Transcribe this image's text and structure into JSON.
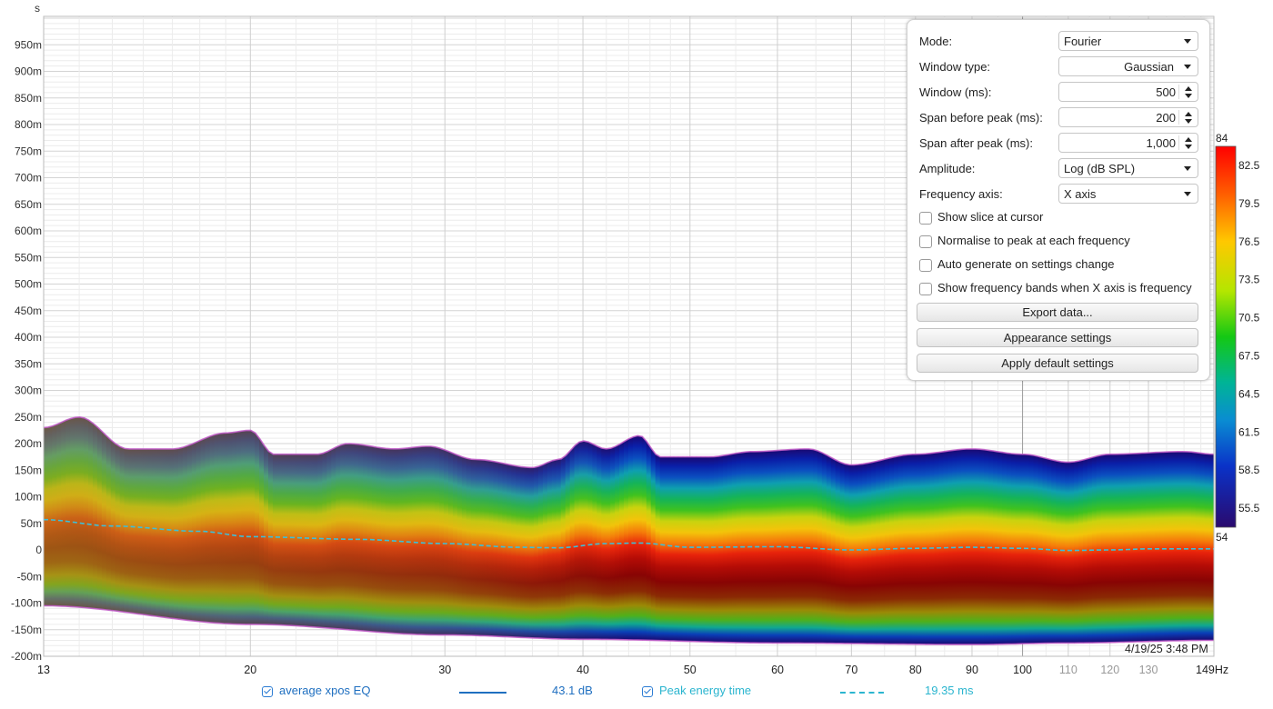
{
  "chart_data": {
    "type": "heatmap",
    "ylabel": "s",
    "y_ticks": [
      "950m",
      "900m",
      "850m",
      "800m",
      "750m",
      "700m",
      "650m",
      "600m",
      "550m",
      "500m",
      "450m",
      "400m",
      "350m",
      "300m",
      "250m",
      "200m",
      "150m",
      "100m",
      "50m",
      "0",
      "-50m",
      "-100m",
      "-150m",
      "-200m"
    ],
    "y_tick_values": [
      0.95,
      0.9,
      0.85,
      0.8,
      0.75,
      0.7,
      0.65,
      0.6,
      0.55,
      0.5,
      0.45,
      0.4,
      0.35,
      0.3,
      0.25,
      0.2,
      0.15,
      0.1,
      0.05,
      0,
      -0.05,
      -0.1,
      -0.15,
      -0.2
    ],
    "ylim": [
      -0.2,
      1.0
    ],
    "x_scale": "log",
    "xlim": [
      13,
      149
    ],
    "x_ticks": [
      {
        "value": 13,
        "label": "13",
        "minor": false
      },
      {
        "value": 20,
        "label": "20",
        "minor": false
      },
      {
        "value": 30,
        "label": "30",
        "minor": false
      },
      {
        "value": 40,
        "label": "40",
        "minor": false
      },
      {
        "value": 50,
        "label": "50",
        "minor": false
      },
      {
        "value": 60,
        "label": "60",
        "minor": false
      },
      {
        "value": 70,
        "label": "70",
        "minor": false
      },
      {
        "value": 80,
        "label": "80",
        "minor": false
      },
      {
        "value": 90,
        "label": "90",
        "minor": false
      },
      {
        "value": 100,
        "label": "100",
        "minor": false
      },
      {
        "value": 110,
        "label": "110",
        "minor": true
      },
      {
        "value": 120,
        "label": "120",
        "minor": true
      },
      {
        "value": 130,
        "label": "130",
        "minor": true
      },
      {
        "value": 149,
        "label": "149Hz",
        "minor": false
      }
    ],
    "spectrogram_top_s": [
      [
        13,
        0.23
      ],
      [
        14,
        0.25
      ],
      [
        15.5,
        0.19
      ],
      [
        17,
        0.19
      ],
      [
        19,
        0.22
      ],
      [
        20,
        0.225
      ],
      [
        21,
        0.18
      ],
      [
        23,
        0.18
      ],
      [
        24.5,
        0.2
      ],
      [
        27,
        0.19
      ],
      [
        29,
        0.195
      ],
      [
        32,
        0.17
      ],
      [
        36,
        0.155
      ],
      [
        38,
        0.17
      ],
      [
        40,
        0.205
      ],
      [
        42,
        0.19
      ],
      [
        45,
        0.215
      ],
      [
        47,
        0.175
      ],
      [
        52,
        0.175
      ],
      [
        57,
        0.185
      ],
      [
        64,
        0.19
      ],
      [
        70,
        0.16
      ],
      [
        80,
        0.18
      ],
      [
        90,
        0.19
      ],
      [
        100,
        0.18
      ],
      [
        110,
        0.165
      ],
      [
        120,
        0.18
      ],
      [
        140,
        0.185
      ],
      [
        149,
        0.18
      ]
    ],
    "spectrogram_bottom_s": [
      [
        13,
        -0.105
      ],
      [
        20,
        -0.14
      ],
      [
        30,
        -0.16
      ],
      [
        40,
        -0.168
      ],
      [
        60,
        -0.175
      ],
      [
        90,
        -0.178
      ],
      [
        110,
        -0.175
      ],
      [
        149,
        -0.17
      ]
    ],
    "series": [
      {
        "name": "Peak energy time",
        "style": "dashed",
        "color": "#3cc0d8",
        "points": [
          [
            13,
            0.057
          ],
          [
            15,
            0.045
          ],
          [
            18,
            0.035
          ],
          [
            20,
            0.025
          ],
          [
            25,
            0.02
          ],
          [
            30,
            0.012
          ],
          [
            35,
            0.005
          ],
          [
            38,
            0.004
          ],
          [
            42,
            0.012
          ],
          [
            45,
            0.013
          ],
          [
            50,
            0.005
          ],
          [
            60,
            0.006
          ],
          [
            70,
            0.0
          ],
          [
            80,
            0.003
          ],
          [
            90,
            0.005
          ],
          [
            100,
            0.003
          ],
          [
            110,
            -0.001
          ],
          [
            120,
            0.0
          ],
          [
            130,
            0.002
          ],
          [
            149,
            0.002
          ]
        ]
      }
    ],
    "color_scale": {
      "min": 54,
      "max": 84,
      "labels": [
        "84",
        "82.5",
        "79.5",
        "76.5",
        "73.5",
        "70.5",
        "67.5",
        "64.5",
        "61.5",
        "58.5",
        "55.5",
        "54"
      ]
    },
    "timestamp": "4/19/25 3:48 PM"
  },
  "panel": {
    "mode": {
      "label": "Mode:",
      "value": "Fourier"
    },
    "window_type": {
      "label": "Window type:",
      "value": "Gaussian"
    },
    "window_ms": {
      "label": "Window (ms):",
      "value": "500"
    },
    "span_before": {
      "label": "Span before peak (ms):",
      "value": "200"
    },
    "span_after": {
      "label": "Span after peak (ms):",
      "value": "1,000"
    },
    "amplitude": {
      "label": "Amplitude:",
      "value": "Log (dB SPL)"
    },
    "freq_axis": {
      "label": "Frequency axis:",
      "value": "X axis"
    },
    "checks": [
      "Show slice at cursor",
      "Normalise to peak at each frequency",
      "Auto generate on settings change",
      "Show frequency bands when X axis is frequency"
    ],
    "buttons": [
      "Export data...",
      "Appearance settings",
      "Apply default settings"
    ]
  },
  "legend": {
    "trace1_name": "average xpos EQ",
    "trace1_value": "43.1 dB",
    "trace1_color": "#1f6fc0",
    "trace2_name": "Peak energy time",
    "trace2_value": "19.35 ms",
    "trace2_color": "#2bb5cf"
  }
}
